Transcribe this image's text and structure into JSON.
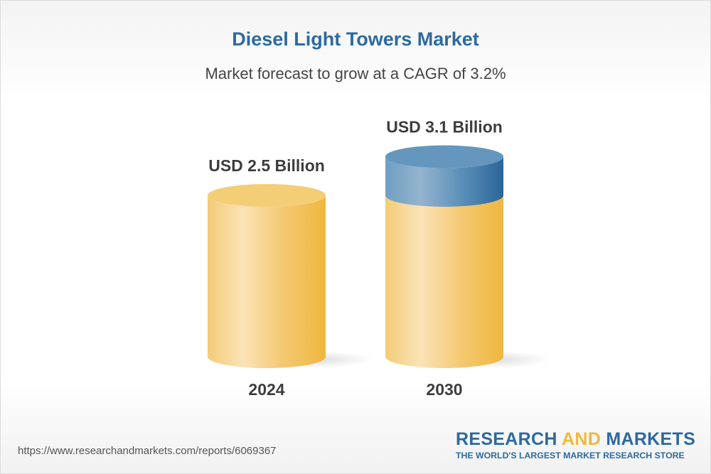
{
  "chart_data": {
    "type": "bar",
    "title": "Diesel Light Towers Market",
    "subtitle": "Market forecast to grow at a CAGR of 3.2%",
    "categories": [
      "2024",
      "2030"
    ],
    "values": [
      2.5,
      3.1
    ],
    "data_labels": [
      "USD 2.5 Billion",
      "USD 3.1 Billion"
    ],
    "unit": "USD Billion",
    "style": "3d-cylinder",
    "grid": false,
    "colors": {
      "base": "#f0b93b",
      "growth": "#2d6a9f"
    }
  },
  "footer": {
    "url": "https://www.researchandmarkets.com/reports/6069367",
    "logo_part1": "RESEARCH ",
    "logo_part2": "AND",
    "logo_part3": " MARKETS",
    "logo_tagline": "THE WORLD'S LARGEST MARKET RESEARCH STORE"
  }
}
